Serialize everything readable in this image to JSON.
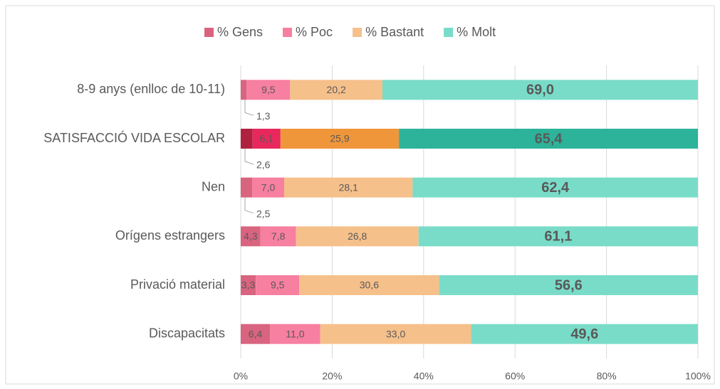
{
  "chart_data": {
    "type": "stacked_barh",
    "categories": [
      "8-9 anys (enlloc de 10-11)",
      "SATISFACCIÓ VIDA ESCOLAR",
      "Nen",
      "Orígens estrangers",
      "Privació material",
      "Discapacitats"
    ],
    "series": [
      {
        "name": "% Gens",
        "color": "#d9647f",
        "colors": [
          "#d9647f",
          "#b0213f",
          "#d9647f",
          "#d9647f",
          "#d9647f",
          "#d9647f"
        ],
        "values": [
          1.3,
          2.6,
          2.5,
          4.3,
          3.3,
          6.4
        ],
        "value_labels": [
          "1,3",
          "2,6",
          "2,5",
          "4,3",
          "3,3",
          "6,4"
        ]
      },
      {
        "name": "% Poc",
        "color": "#f77fa0",
        "colors": [
          "#f77fa0",
          "#e8285d",
          "#f77fa0",
          "#f77fa0",
          "#f77fa0",
          "#f77fa0"
        ],
        "values": [
          9.5,
          6.1,
          7.0,
          7.8,
          9.5,
          11.0
        ],
        "value_labels": [
          "9,5",
          "6,1",
          "7,0",
          "7,8",
          "9,5",
          "11,0"
        ]
      },
      {
        "name": "% Bastant",
        "color": "#f6c08b",
        "colors": [
          "#f6c08b",
          "#f0963a",
          "#f6c08b",
          "#f6c08b",
          "#f6c08b",
          "#f6c08b"
        ],
        "values": [
          20.2,
          25.9,
          28.1,
          26.8,
          30.6,
          33.0
        ],
        "value_labels": [
          "20,2",
          "25,9",
          "28,1",
          "26,8",
          "30,6",
          "33,0"
        ]
      },
      {
        "name": "% Molt",
        "color": "#79dcc8",
        "colors": [
          "#79dcc8",
          "#2db39a",
          "#79dcc8",
          "#79dcc8",
          "#79dcc8",
          "#79dcc8"
        ],
        "values": [
          69.0,
          65.4,
          62.4,
          61.1,
          56.6,
          49.6
        ],
        "value_labels": [
          "69,0",
          "65,4",
          "62,4",
          "61,1",
          "56,6",
          "49,6"
        ]
      }
    ],
    "xlim": [
      0,
      100
    ],
    "xticks": [
      {
        "value": 0,
        "label": "0%"
      },
      {
        "value": 20,
        "label": "20%"
      },
      {
        "value": 40,
        "label": "40%"
      },
      {
        "value": 60,
        "label": "60%"
      },
      {
        "value": 80,
        "label": "80%"
      },
      {
        "value": 100,
        "label": "100%"
      }
    ],
    "grid": true,
    "legend": "top"
  }
}
